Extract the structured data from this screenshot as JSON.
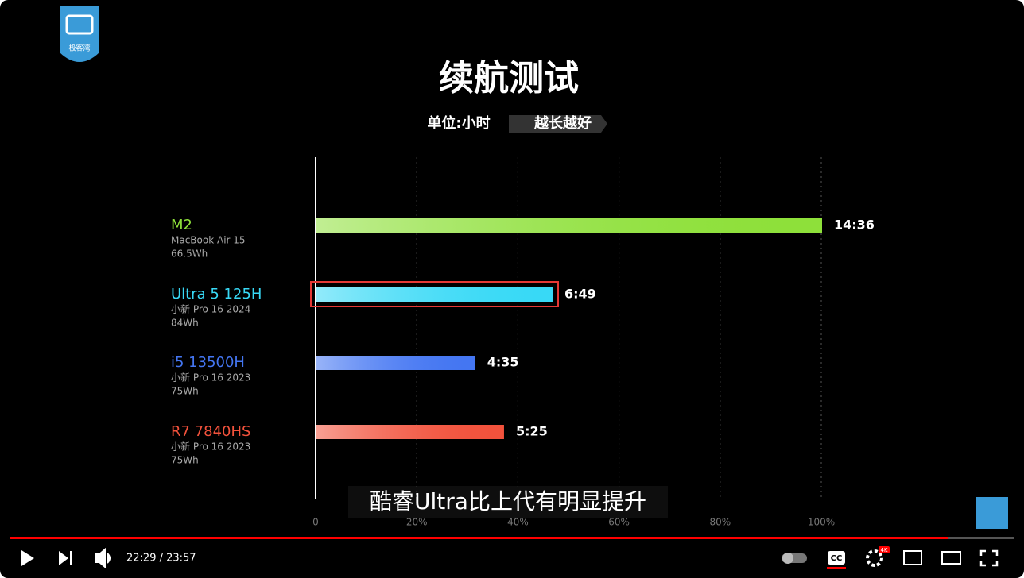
{
  "chart_data": {
    "type": "bar",
    "orientation": "horizontal",
    "title": "续航测试",
    "subtitle": "单位:小时",
    "badge": "越长越好",
    "categories": [
      "M2",
      "Ultra 5 125H",
      "i5 13500H",
      "R7 7840HS"
    ],
    "category_details": [
      [
        "MacBook Air 15",
        "66.5Wh"
      ],
      [
        "小新 Pro 16 2024",
        "84Wh"
      ],
      [
        "小新 Pro 16 2023",
        "75Wh"
      ],
      [
        "小新 Pro 16 2023",
        "75Wh"
      ]
    ],
    "values": [
      100,
      46.7,
      31.4,
      37.1
    ],
    "value_labels": [
      "14:36",
      "6:49",
      "4:35",
      "5:25"
    ],
    "colors": [
      "#8ee03a",
      "#38d9f6",
      "#4476f2",
      "#f2523c"
    ],
    "xlim": [
      0,
      100
    ],
    "xticks": [
      0,
      {
        "value": 20,
        "label": "20%"
      },
      {
        "value": 40,
        "label": "40%"
      },
      {
        "value": 60,
        "label": "60%"
      },
      {
        "value": 80,
        "label": "80%"
      },
      {
        "value": 100,
        "label": "100%"
      }
    ],
    "grid": true,
    "highlight_index": 1
  },
  "caption": "酷睿Ultra比上代有明显提升",
  "logo": "极客湾",
  "player": {
    "time": "22:29 / 23:57",
    "cc": "CC",
    "quality_badge": "4K"
  }
}
